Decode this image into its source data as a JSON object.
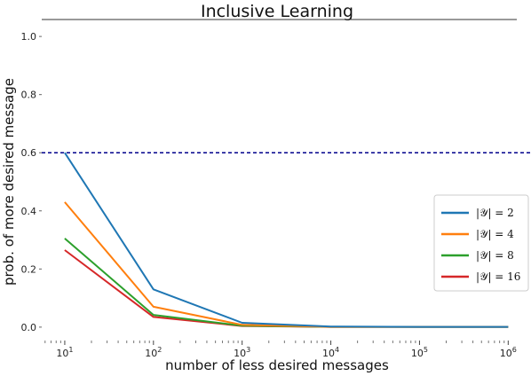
{
  "chart_data": {
    "type": "line",
    "title": "Inclusive Learning",
    "xlabel": "number of less desired messages",
    "ylabel": "prob. of more desired message",
    "xscale": "log",
    "xlim": [
      5.5,
      1250000
    ],
    "ylim": [
      -0.04,
      1.04
    ],
    "x": [
      10,
      100,
      1000,
      10000,
      100000,
      1000000
    ],
    "x_ticks": [
      {
        "value": 10,
        "base": "10",
        "exp": "1"
      },
      {
        "value": 100,
        "base": "10",
        "exp": "2"
      },
      {
        "value": 1000,
        "base": "10",
        "exp": "3"
      },
      {
        "value": 10000,
        "base": "10",
        "exp": "4"
      },
      {
        "value": 100000,
        "base": "10",
        "exp": "5"
      },
      {
        "value": 1000000,
        "base": "10",
        "exp": "6"
      }
    ],
    "y_ticks": [
      {
        "value": 0.0,
        "label": "0.0"
      },
      {
        "value": 0.2,
        "label": "0.2"
      },
      {
        "value": 0.4,
        "label": "0.4"
      },
      {
        "value": 0.6,
        "label": "0.6"
      },
      {
        "value": 0.8,
        "label": "0.8"
      },
      {
        "value": 1.0,
        "label": "1.0"
      }
    ],
    "hline": {
      "value": 0.6,
      "style": "dashed",
      "color": "#00008b"
    },
    "series": [
      {
        "name": "|𝒴| = 2",
        "color": "#1f77b4",
        "values": [
          0.6,
          0.13,
          0.015,
          0.002,
          0.001,
          0.001
        ]
      },
      {
        "name": "|𝒴| = 4",
        "color": "#ff7f0e",
        "values": [
          0.43,
          0.07,
          0.008,
          0.001,
          0.001,
          0.001
        ]
      },
      {
        "name": "|𝒴| = 8",
        "color": "#2ca02c",
        "values": [
          0.305,
          0.042,
          0.005,
          0.001,
          0.001,
          0.001
        ]
      },
      {
        "name": "|𝒴| = 16",
        "color": "#d62728",
        "values": [
          0.265,
          0.035,
          0.004,
          0.001,
          0.001,
          0.001
        ]
      }
    ],
    "legend": {
      "placement": "right"
    },
    "grid": false
  }
}
